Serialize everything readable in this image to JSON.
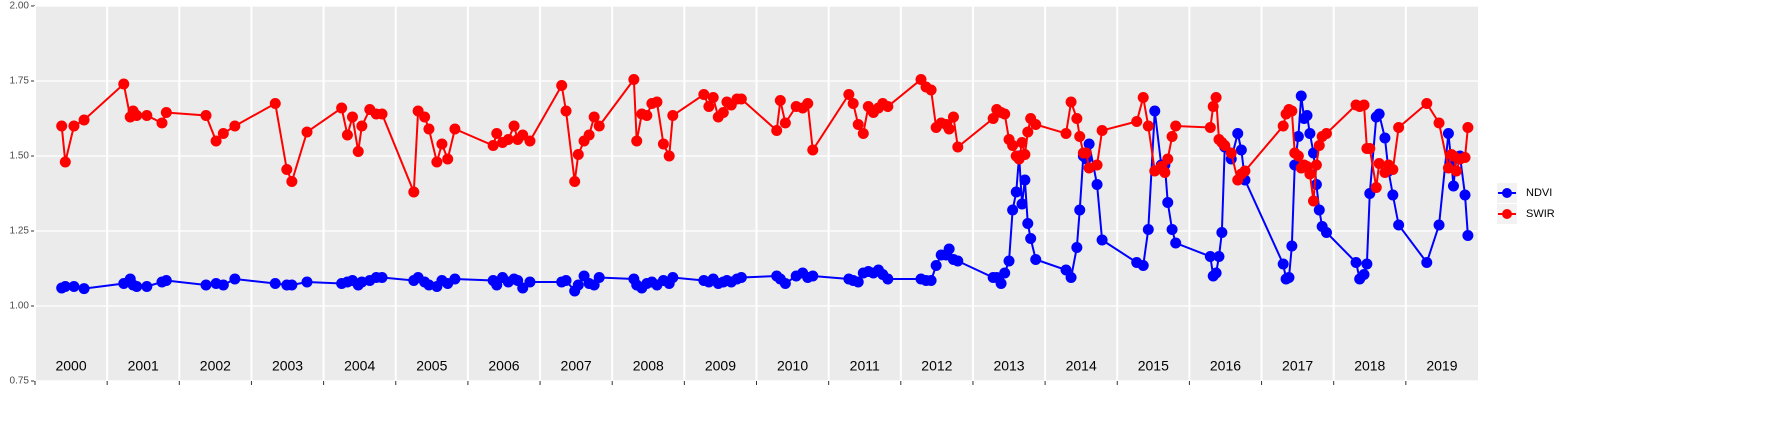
{
  "chart_data": {
    "type": "line",
    "x": [
      2000.37,
      2000.42,
      2000.54,
      2000.68,
      2001.23,
      2001.32,
      2001.36,
      2001.41,
      2001.55,
      2001.76,
      2001.82,
      2002.37,
      2002.51,
      2002.61,
      2002.77,
      2003.33,
      2003.49,
      2003.56,
      2003.77,
      2004.25,
      2004.33,
      2004.4,
      2004.48,
      2004.53,
      2004.64,
      2004.73,
      2004.81,
      2005.25,
      2005.31,
      2005.4,
      2005.46,
      2005.57,
      2005.64,
      2005.72,
      2005.82,
      2006.35,
      2006.4,
      2006.48,
      2006.56,
      2006.64,
      2006.69,
      2006.76,
      2006.86,
      2007.3,
      2007.36,
      2007.48,
      2007.53,
      2007.61,
      2007.68,
      2007.75,
      2007.82,
      2008.3,
      2008.34,
      2008.41,
      2008.48,
      2008.55,
      2008.62,
      2008.71,
      2008.79,
      2008.84,
      2009.27,
      2009.34,
      2009.4,
      2009.47,
      2009.54,
      2009.59,
      2009.65,
      2009.73,
      2009.79,
      2010.28,
      2010.33,
      2010.4,
      2010.55,
      2010.64,
      2010.71,
      2010.78,
      2011.28,
      2011.34,
      2011.41,
      2011.48,
      2011.55,
      2011.62,
      2011.69,
      2011.75,
      2011.82,
      2012.28,
      2012.35,
      2012.42,
      2012.49,
      2012.56,
      2012.63,
      2012.67,
      2012.73,
      2012.79,
      2013.28,
      2013.33,
      2013.39,
      2013.44,
      2013.5,
      2013.55,
      2013.6,
      2013.64,
      2013.68,
      2013.72,
      2013.76,
      2013.8,
      2013.87,
      2014.29,
      2014.36,
      2014.44,
      2014.48,
      2014.53,
      2014.57,
      2014.61,
      2014.72,
      2014.79,
      2015.27,
      2015.36,
      2015.43,
      2015.52,
      2015.61,
      2015.66,
      2015.7,
      2015.76,
      2015.81,
      2016.29,
      2016.33,
      2016.37,
      2016.41,
      2016.45,
      2016.49,
      2016.58,
      2016.67,
      2016.72,
      2016.77,
      2017.3,
      2017.34,
      2017.38,
      2017.42,
      2017.46,
      2017.51,
      2017.55,
      2017.59,
      2017.63,
      2017.67,
      2017.72,
      2017.76,
      2017.8,
      2017.84,
      2017.9,
      2018.31,
      2018.36,
      2018.42,
      2018.46,
      2018.5,
      2018.59,
      2018.63,
      2018.71,
      2018.76,
      2018.82,
      2018.9,
      2019.29,
      2019.46,
      2019.59,
      2019.63,
      2019.66,
      2019.7,
      2019.75,
      2019.82,
      2019.86
    ],
    "series": [
      {
        "name": "NDVI",
        "color": "#0000ff",
        "values": [
          1.06,
          1.065,
          1.065,
          1.058,
          1.075,
          1.09,
          1.07,
          1.065,
          1.065,
          1.08,
          1.085,
          1.07,
          1.075,
          1.07,
          1.09,
          1.075,
          1.07,
          1.07,
          1.08,
          1.075,
          1.08,
          1.085,
          1.07,
          1.08,
          1.085,
          1.095,
          1.095,
          1.085,
          1.095,
          1.08,
          1.07,
          1.065,
          1.085,
          1.075,
          1.09,
          1.085,
          1.07,
          1.095,
          1.08,
          1.09,
          1.085,
          1.06,
          1.08,
          1.08,
          1.085,
          1.05,
          1.07,
          1.1,
          1.075,
          1.07,
          1.095,
          1.09,
          1.07,
          1.06,
          1.075,
          1.08,
          1.07,
          1.085,
          1.075,
          1.095,
          1.085,
          1.08,
          1.09,
          1.075,
          1.08,
          1.085,
          1.08,
          1.09,
          1.095,
          1.1,
          1.09,
          1.075,
          1.1,
          1.11,
          1.095,
          1.1,
          1.09,
          1.085,
          1.08,
          1.11,
          1.115,
          1.11,
          1.12,
          1.105,
          1.09,
          1.09,
          1.085,
          1.085,
          1.135,
          1.17,
          1.17,
          1.19,
          1.155,
          1.15,
          1.095,
          1.095,
          1.075,
          1.11,
          1.15,
          1.32,
          1.38,
          1.5,
          1.34,
          1.42,
          1.275,
          1.225,
          1.155,
          1.12,
          1.095,
          1.195,
          1.32,
          1.5,
          1.49,
          1.54,
          1.405,
          1.22,
          1.145,
          1.135,
          1.255,
          1.65,
          1.47,
          1.47,
          1.345,
          1.255,
          1.21,
          1.165,
          1.1,
          1.11,
          1.165,
          1.245,
          1.53,
          1.49,
          1.575,
          1.52,
          1.42,
          1.14,
          1.09,
          1.095,
          1.2,
          1.47,
          1.565,
          1.7,
          1.625,
          1.635,
          1.575,
          1.51,
          1.405,
          1.32,
          1.265,
          1.245,
          1.145,
          1.09,
          1.105,
          1.14,
          1.375,
          1.63,
          1.64,
          1.56,
          1.45,
          1.37,
          1.27,
          1.145,
          1.27,
          1.575,
          1.48,
          1.4,
          1.495,
          1.5,
          1.37,
          1.235
        ]
      },
      {
        "name": "SWIR",
        "color": "#ff0000",
        "values": [
          1.6,
          1.48,
          1.6,
          1.62,
          1.74,
          1.63,
          1.65,
          1.635,
          1.635,
          1.61,
          1.645,
          1.635,
          1.55,
          1.575,
          1.6,
          1.675,
          1.455,
          1.415,
          1.58,
          1.66,
          1.57,
          1.63,
          1.515,
          1.6,
          1.655,
          1.64,
          1.64,
          1.38,
          1.65,
          1.63,
          1.59,
          1.48,
          1.54,
          1.49,
          1.59,
          1.535,
          1.575,
          1.545,
          1.555,
          1.6,
          1.555,
          1.57,
          1.55,
          1.735,
          1.65,
          1.415,
          1.505,
          1.55,
          1.57,
          1.63,
          1.6,
          1.755,
          1.55,
          1.64,
          1.635,
          1.675,
          1.68,
          1.54,
          1.5,
          1.635,
          1.705,
          1.665,
          1.695,
          1.63,
          1.645,
          1.68,
          1.67,
          1.69,
          1.69,
          1.585,
          1.685,
          1.61,
          1.665,
          1.66,
          1.675,
          1.52,
          1.705,
          1.675,
          1.605,
          1.575,
          1.665,
          1.645,
          1.66,
          1.675,
          1.665,
          1.755,
          1.73,
          1.72,
          1.595,
          1.61,
          1.605,
          1.59,
          1.63,
          1.53,
          1.625,
          1.655,
          1.645,
          1.64,
          1.555,
          1.535,
          1.5,
          1.49,
          1.545,
          1.505,
          1.58,
          1.625,
          1.605,
          1.575,
          1.68,
          1.625,
          1.565,
          1.51,
          1.51,
          1.46,
          1.47,
          1.585,
          1.615,
          1.695,
          1.6,
          1.45,
          1.465,
          1.445,
          1.49,
          1.565,
          1.6,
          1.595,
          1.665,
          1.695,
          1.555,
          1.545,
          1.535,
          1.51,
          1.42,
          1.44,
          1.45,
          1.6,
          1.64,
          1.655,
          1.65,
          1.51,
          1.5,
          1.46,
          1.47,
          1.465,
          1.44,
          1.35,
          1.47,
          1.535,
          1.565,
          1.575,
          1.67,
          1.665,
          1.67,
          1.525,
          1.525,
          1.395,
          1.475,
          1.445,
          1.47,
          1.455,
          1.595,
          1.675,
          1.61,
          1.46,
          1.505,
          1.5,
          1.45,
          1.49,
          1.495,
          1.595
        ]
      }
    ],
    "xlim": [
      2000,
      2020
    ],
    "xticks": [
      {
        "value": 2000.5,
        "label": "2000"
      },
      {
        "value": 2001.5,
        "label": "2001"
      },
      {
        "value": 2002.5,
        "label": "2002"
      },
      {
        "value": 2003.5,
        "label": "2003"
      },
      {
        "value": 2004.5,
        "label": "2004"
      },
      {
        "value": 2005.5,
        "label": "2005"
      },
      {
        "value": 2006.5,
        "label": "2006"
      },
      {
        "value": 2007.5,
        "label": "2007"
      },
      {
        "value": 2008.5,
        "label": "2008"
      },
      {
        "value": 2009.5,
        "label": "2009"
      },
      {
        "value": 2010.5,
        "label": "2010"
      },
      {
        "value": 2011.5,
        "label": "2011"
      },
      {
        "value": 2012.5,
        "label": "2012"
      },
      {
        "value": 2013.5,
        "label": "2013"
      },
      {
        "value": 2014.5,
        "label": "2014"
      },
      {
        "value": 2015.5,
        "label": "2015"
      },
      {
        "value": 2016.5,
        "label": "2016"
      },
      {
        "value": 2017.5,
        "label": "2017"
      },
      {
        "value": 2018.5,
        "label": "2018"
      },
      {
        "value": 2019.5,
        "label": "2019"
      }
    ],
    "ylim": [
      0.75,
      2
    ],
    "yticks": [
      0.75,
      {
        "value": 1,
        "label": "1.00"
      },
      1.25,
      {
        "value": 1.5,
        "label": "1.50"
      },
      1.75,
      {
        "value": 2,
        "label": "2.00"
      }
    ],
    "grid": true,
    "legend": "right"
  }
}
